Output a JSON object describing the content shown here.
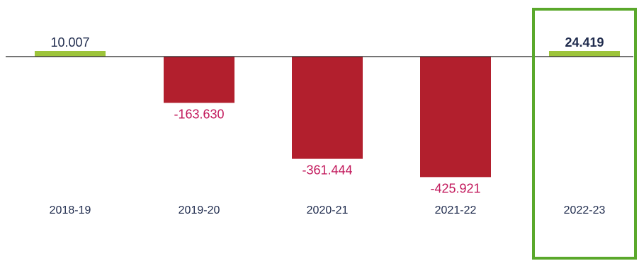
{
  "chart_data": {
    "type": "bar",
    "categories": [
      "2018-19",
      "2019-20",
      "2020-21",
      "2021-22",
      "2022-23"
    ],
    "values": [
      10.007,
      -163.63,
      -361.444,
      -425.921,
      24.419
    ],
    "value_labels": [
      "10.007",
      "-163.630",
      "-361.444",
      "-425.921",
      "24.419"
    ],
    "highlighted_category": "2022-23",
    "title": "",
    "xlabel": "",
    "ylabel": "",
    "ylim": [
      -430,
      30
    ],
    "grid": false,
    "legend": "none"
  },
  "colors": {
    "positive_bar": "#9dc43a",
    "negative_bar": "#b21f2d",
    "negative_label": "#c2185b",
    "positive_label": "#1f2b4d",
    "highlight_border": "#5aa82b",
    "baseline": "#222222",
    "category_label": "#1f2b4d"
  }
}
